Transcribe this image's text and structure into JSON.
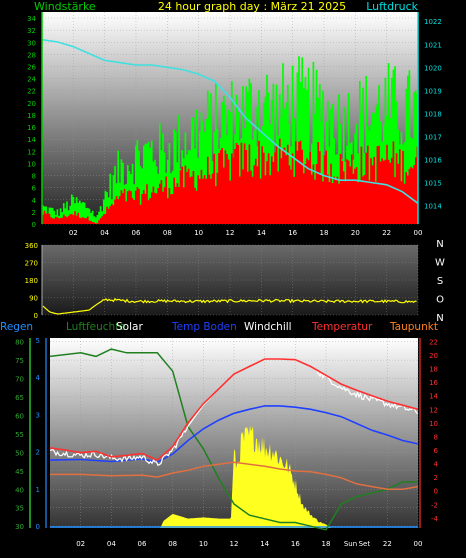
{
  "colors": {
    "wind_green": "#00ff00",
    "gust_red": "#ff0000",
    "pressure_cyan": "#40e0e0",
    "direction_yellow": "#ffff00",
    "humidity_green": "#208020",
    "temp_red": "#ff3030",
    "dewpoint_orange": "#e07040",
    "windchill_white": "#ffffff",
    "soil_blue": "#2040ff",
    "solar_yellow": "#ffff20",
    "axis_green": "#00cc00",
    "axis_cyan": "#00e0e0",
    "text_yellow": "#ffff00",
    "rain_blue": "#1e90ff",
    "dew_orange": "#ff8020"
  },
  "chart_data": [
    {
      "type": "line",
      "title": "24 hour graph day : März 21 2025",
      "left_label": "Windstärke",
      "right_label": "Luftdruck",
      "x_ticks": [
        "02",
        "04",
        "06",
        "08",
        "10",
        "12",
        "14",
        "16",
        "18",
        "20",
        "22",
        "00"
      ],
      "y_left_ticks": [
        "34",
        "32",
        "30",
        "28",
        "26",
        "24",
        "22",
        "20",
        "18",
        "16",
        "14",
        "12",
        "10",
        "8",
        "6",
        "4",
        "2",
        "0"
      ],
      "y_left_range": [
        0,
        35
      ],
      "y_right_ticks": [
        "1022",
        "1021",
        "1020",
        "1019",
        "1018",
        "1017",
        "1016",
        "1015",
        "1014"
      ],
      "y_right_range": [
        1013.2,
        1022.4
      ],
      "grid": true,
      "series": [
        {
          "role": "wind speed (green)",
          "x": [
            0,
            1,
            2,
            3,
            3.5,
            4,
            5,
            6,
            7,
            8,
            9,
            10,
            11,
            12,
            13,
            14,
            15,
            16,
            17,
            18,
            19,
            20,
            21,
            22,
            23,
            24
          ],
          "values": [
            3,
            2,
            4,
            3,
            1,
            5,
            10,
            12,
            13,
            13,
            15,
            17,
            18,
            19,
            20,
            22,
            20,
            22,
            21,
            20,
            18,
            19,
            20,
            21,
            20,
            20
          ]
        },
        {
          "role": "wind gust (red)",
          "x": [
            0,
            1,
            2,
            3,
            3.5,
            4,
            5,
            6,
            7,
            8,
            9,
            10,
            11,
            12,
            13,
            14,
            15,
            16,
            17,
            18,
            19,
            20,
            21,
            22,
            23,
            24
          ],
          "values": [
            2,
            1,
            2,
            1,
            0,
            2,
            5,
            5,
            6,
            7,
            8,
            9,
            10,
            11,
            12,
            12,
            12,
            13,
            12,
            11,
            10,
            11,
            11,
            12,
            11,
            11
          ]
        },
        {
          "role": "pressure (cyan)",
          "x": [
            0,
            1,
            2,
            3,
            4,
            5,
            6,
            7,
            8,
            9,
            10,
            11,
            12,
            13,
            14,
            15,
            16,
            17,
            18,
            19,
            20,
            21,
            22,
            23,
            24
          ],
          "values": [
            1021.2,
            1021.1,
            1020.9,
            1020.6,
            1020.3,
            1020.2,
            1020.1,
            1020.1,
            1020.0,
            1019.9,
            1019.7,
            1019.4,
            1018.7,
            1017.8,
            1017.2,
            1016.6,
            1016.1,
            1015.6,
            1015.3,
            1015.1,
            1015.1,
            1015.0,
            1014.9,
            1014.6,
            1014.1
          ]
        }
      ]
    },
    {
      "type": "line",
      "x_ticks": [
        "02",
        "04",
        "06",
        "08",
        "10",
        "12",
        "14",
        "16",
        "18",
        "20",
        "22",
        "00"
      ],
      "y_left_ticks": [
        "360",
        "270",
        "180",
        "90",
        "0"
      ],
      "y_left_range": [
        0,
        360
      ],
      "compass_labels": [
        "N",
        "W",
        "S",
        "O",
        "N"
      ],
      "grid": true,
      "series": [
        {
          "role": "wind direction (yellow)",
          "x": [
            0,
            0.5,
            1,
            2,
            3,
            3.5,
            4,
            5,
            6,
            8,
            10,
            12,
            14,
            16,
            18,
            20,
            22,
            24
          ],
          "values": [
            50,
            15,
            5,
            15,
            25,
            55,
            80,
            75,
            70,
            72,
            70,
            72,
            74,
            72,
            70,
            71,
            70,
            68
          ]
        }
      ]
    },
    {
      "type": "line",
      "legend": [
        {
          "label": "Regen",
          "color_key": "rain_blue"
        },
        {
          "label": "Luftfeuchte",
          "color_key": "humidity_green"
        },
        {
          "label": "Solar",
          "color_key": "windchill_white"
        },
        {
          "label": "Temp Boden",
          "color_key": "soil_blue"
        },
        {
          "label": "Windchill",
          "color_key": "windchill_white"
        },
        {
          "label": "Temperatur",
          "color_key": "temp_red"
        },
        {
          "label": "Taupunkt",
          "color_key": "dew_orange"
        }
      ],
      "x_ticks": [
        "02",
        "04",
        "06",
        "08",
        "10",
        "12",
        "14",
        "16",
        "18",
        "Sun",
        "Set",
        "22",
        "00"
      ],
      "y_left_ticks": [
        "80",
        "75",
        "70",
        "65",
        "60",
        "55",
        "50",
        "45",
        "40",
        "35",
        "30"
      ],
      "y_left_range": [
        29.5,
        81
      ],
      "y_rain_ticks": [
        "5",
        "4",
        "3",
        "2",
        "1",
        "0"
      ],
      "y_right_ticks": [
        "22",
        "20",
        "18",
        "16",
        "14",
        "12",
        "10",
        "8",
        "6",
        "4",
        "2",
        "0",
        "-2",
        "-4"
      ],
      "y_right_range": [
        -5.5,
        22.5
      ],
      "grid": true,
      "series": [
        {
          "role": "humidity (green)",
          "x": [
            0,
            2,
            3,
            4,
            5,
            6,
            7,
            8,
            9,
            10,
            11,
            12,
            13,
            14,
            15,
            16,
            17,
            18,
            19,
            20,
            21,
            22,
            23,
            24
          ],
          "values": [
            76,
            77,
            76,
            78,
            77,
            77,
            77,
            72,
            57,
            51,
            43,
            36,
            33,
            32,
            31,
            31,
            30,
            29,
            36,
            38,
            39,
            40,
            42,
            42
          ]
        },
        {
          "role": "temperature (red)",
          "x": [
            0,
            1,
            2,
            3,
            4,
            5,
            6,
            7,
            8,
            9,
            10,
            11,
            12,
            13,
            14,
            15,
            16,
            17,
            18,
            19,
            20,
            21,
            22,
            23,
            24
          ],
          "values": [
            6.3,
            6.0,
            5.6,
            5.8,
            5.0,
            5.2,
            5.5,
            4.5,
            6.5,
            10.0,
            12.8,
            15.0,
            17.2,
            18.3,
            19.4,
            19.4,
            19.3,
            18.3,
            17.0,
            15.7,
            14.8,
            14.0,
            13.2,
            12.6,
            12.0
          ]
        },
        {
          "role": "windchill (white)",
          "x": [
            0,
            1,
            2,
            3,
            4,
            5,
            6,
            7,
            8,
            9,
            10,
            11,
            12,
            13,
            14,
            15,
            16,
            17,
            18,
            19,
            20,
            21,
            22,
            23,
            24
          ],
          "values": [
            5.8,
            5.5,
            5.2,
            5.4,
            4.8,
            4.7,
            5.0,
            3.8,
            6.0,
            9.5,
            12.6,
            15.0,
            17.2,
            18.3,
            19.4,
            19.4,
            19.3,
            18.3,
            16.7,
            15.2,
            14.2,
            13.4,
            12.8,
            12.2,
            11.6
          ]
        },
        {
          "role": "soil temperature (blue)",
          "x": [
            0,
            2,
            4,
            6,
            7,
            8,
            9,
            10,
            11,
            12,
            13,
            14,
            15,
            16,
            17,
            18,
            19,
            20,
            21,
            22,
            23,
            24
          ],
          "values": [
            4.5,
            4.6,
            4.3,
            4.7,
            4.2,
            5.4,
            7.4,
            9.1,
            10.4,
            11.4,
            12.0,
            12.5,
            12.5,
            12.3,
            12.0,
            11.5,
            10.9,
            9.9,
            8.9,
            8.2,
            7.4,
            6.9
          ]
        },
        {
          "role": "dew point (orange)",
          "x": [
            0,
            2,
            4,
            6,
            7,
            8,
            9,
            10,
            11,
            12,
            13,
            14,
            15,
            16,
            17,
            18,
            19,
            20,
            21,
            22,
            23,
            24
          ],
          "values": [
            2.4,
            2.4,
            2.2,
            2.3,
            2.0,
            2.6,
            3.0,
            3.6,
            3.9,
            4.2,
            3.9,
            3.6,
            3.2,
            2.9,
            2.8,
            2.4,
            1.9,
            1.0,
            0.6,
            0.2,
            0.2,
            0.6
          ]
        },
        {
          "role": "solar radiation (yellow area, relative 0-1)",
          "x": [
            0,
            7.2,
            7.4,
            8,
            9,
            10,
            11,
            11.8,
            12,
            12.2,
            12.5,
            13,
            13.5,
            14,
            14.5,
            15,
            15.5,
            16,
            16.5,
            17,
            17.5,
            18,
            18.3,
            24
          ],
          "values": [
            0,
            0,
            0.06,
            0.12,
            0.08,
            0.09,
            0.08,
            0.08,
            0.65,
            0.55,
            0.78,
            0.82,
            0.8,
            0.72,
            0.7,
            0.62,
            0.55,
            0.4,
            0.2,
            0.12,
            0.06,
            0.03,
            0,
            0
          ]
        }
      ]
    }
  ]
}
